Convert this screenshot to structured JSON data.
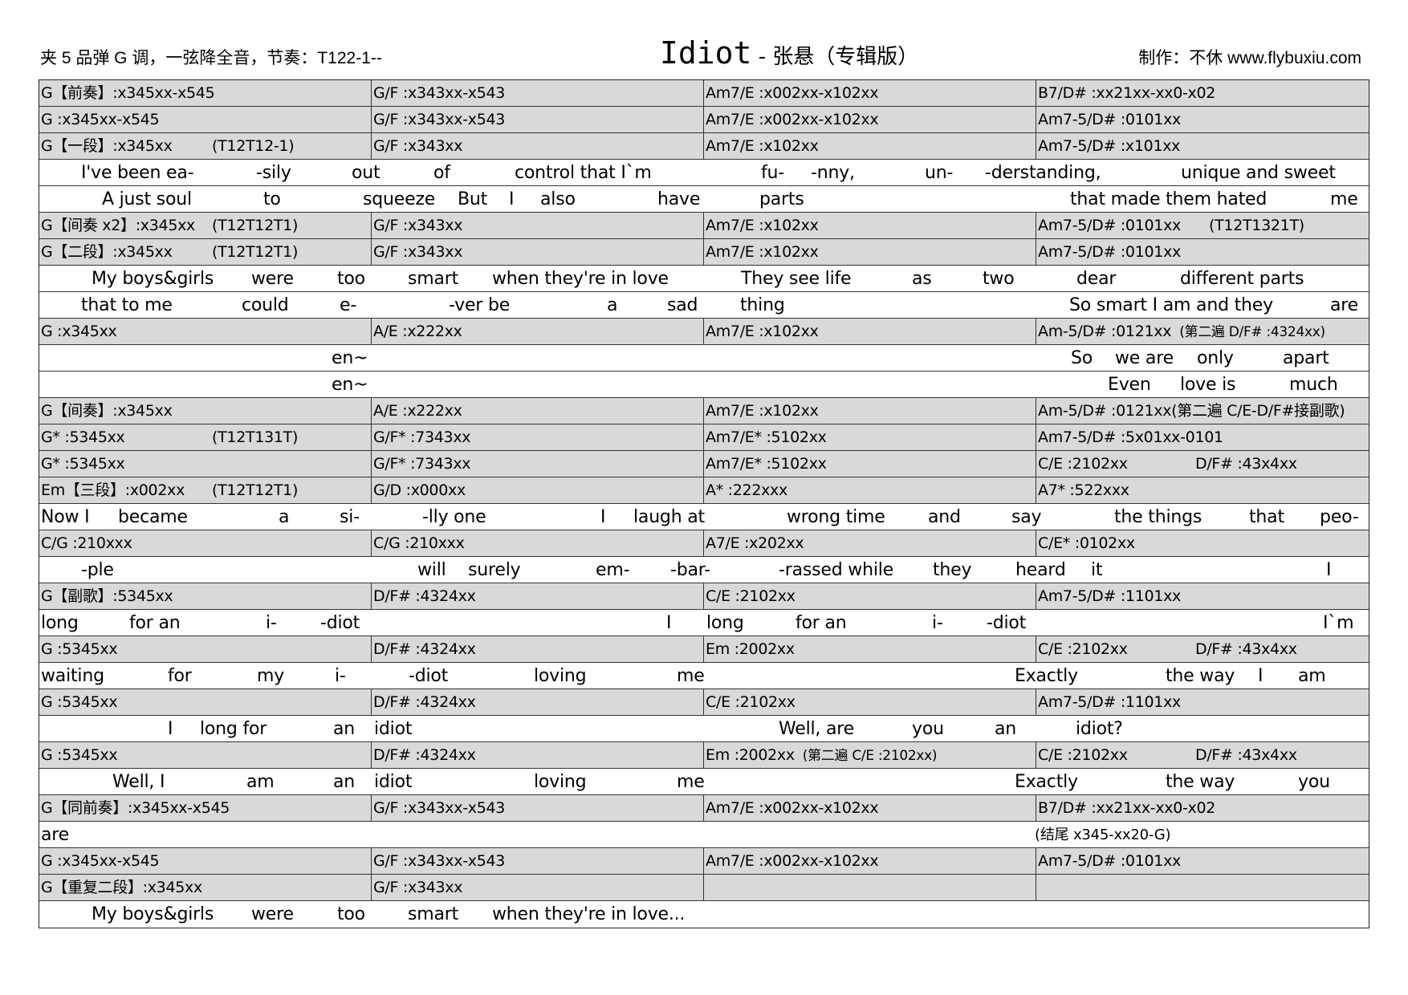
{
  "header": {
    "left": "夹 5 品弹 G 调，一弦降全音，节奏：T122-1--",
    "title_main": "Idiot",
    "title_rest": " - 张悬（专辑版）",
    "right": "制作：不休 www.flybuxiu.com"
  },
  "colors": {
    "chord_row_bg": "#d9d9d9",
    "lyric_row_bg": "#ffffff",
    "border": "#333333"
  },
  "rows": [
    {
      "type": "chord",
      "cells": [
        {
          "t": "G【前奏】:x345xx-x545"
        },
        {
          "t": "G/F :x343xx-x543"
        },
        {
          "t": "Am7/E :x002xx-x102xx"
        },
        {
          "t": "B7/D# :xx21xx-xx0-x02"
        }
      ]
    },
    {
      "type": "chord",
      "cells": [
        {
          "t": "G :x345xx-x545"
        },
        {
          "t": "G/F :x343xx-x543"
        },
        {
          "t": "Am7/E :x002xx-x102xx"
        },
        {
          "t": "Am7-5/D# :0101xx"
        }
      ]
    },
    {
      "type": "chord",
      "cells": [
        {
          "t": "G【一段】:x345xx",
          "x": "(T12T12-1)"
        },
        {
          "t": "G/F :x343xx"
        },
        {
          "t": "Am7/E :x102xx"
        },
        {
          "t": "Am7-5/D# :x101xx"
        }
      ]
    },
    {
      "type": "lyric",
      "words": [
        "I've been ea-",
        "-sily",
        "out",
        "of",
        "control that I`m",
        "fu-",
        "-nny,",
        "un-",
        "-derstanding,",
        "unique and sweet"
      ]
    },
    {
      "type": "lyric",
      "words": [
        "A just soul",
        "to",
        "squeeze",
        "But",
        "I",
        "also",
        "have",
        "parts",
        "that made them hated",
        "me"
      ]
    },
    {
      "type": "chord",
      "cells": [
        {
          "t": "G【间奏 x2】:x345xx",
          "x": "(T12T12T1)"
        },
        {
          "t": "G/F :x343xx"
        },
        {
          "t": "Am7/E :x102xx"
        },
        {
          "t": "Am7-5/D# :0101xx",
          "x": "(T12T1321T)"
        }
      ]
    },
    {
      "type": "chord",
      "cells": [
        {
          "t": "G【二段】:x345xx",
          "x": "(T12T12T1)"
        },
        {
          "t": "G/F :x343xx"
        },
        {
          "t": "Am7/E :x102xx"
        },
        {
          "t": "Am7-5/D# :0101xx"
        }
      ]
    },
    {
      "type": "lyric",
      "words": [
        "My boys&girls",
        "were",
        "too",
        "smart",
        "when they're in love",
        "They see life",
        "as",
        "two",
        "dear",
        "different parts"
      ]
    },
    {
      "type": "lyric",
      "words": [
        "that to me",
        "could",
        "e-",
        "-ver be",
        "a",
        "sad",
        "thing",
        "So smart I am and they",
        "are"
      ]
    },
    {
      "type": "chord",
      "cells": [
        {
          "t": "G :x345xx"
        },
        {
          "t": "A/E :x222xx"
        },
        {
          "t": "Am7/E :x102xx"
        },
        {
          "t": "Am-5/D# :0121xx",
          "s": "(第二遍 D/F# :4324xx)"
        }
      ]
    },
    {
      "type": "lyric",
      "words": [
        "en~",
        "So",
        "we are",
        "only",
        "apart"
      ]
    },
    {
      "type": "lyric",
      "words": [
        "en~",
        "Even",
        "love is",
        "much"
      ]
    },
    {
      "type": "chord",
      "cells": [
        {
          "t": "G【间奏】:x345xx"
        },
        {
          "t": "A/E :x222xx"
        },
        {
          "t": "Am7/E :x102xx"
        },
        {
          "t": "Am-5/D# :0121xx(第二遍 C/E-D/F#接副歌)"
        }
      ]
    },
    {
      "type": "chord",
      "cells": [
        {
          "t": "G* :5345xx",
          "x": "(T12T131T)"
        },
        {
          "t": "G/F* :7343xx"
        },
        {
          "t": "Am7/E* :5102xx"
        },
        {
          "t": "Am7-5/D# :5x01xx-0101"
        }
      ]
    },
    {
      "type": "chord",
      "cells": [
        {
          "t": "G* :5345xx"
        },
        {
          "t": "G/F* :7343xx"
        },
        {
          "t": "Am7/E* :5102xx"
        },
        {
          "t": "C/E :2102xx",
          "x": "D/F# :43x4xx"
        }
      ]
    },
    {
      "type": "chord",
      "cells": [
        {
          "t": "Em【三段】:x002xx",
          "x": "(T12T12T1)"
        },
        {
          "t": "G/D :x000xx"
        },
        {
          "t": "A* :222xxx"
        },
        {
          "t": "A7* :522xxx"
        }
      ]
    },
    {
      "type": "lyric",
      "words": [
        "Now I",
        "became",
        "a",
        "si-",
        "-lly one",
        "I",
        "laugh at",
        "wrong time",
        "and",
        "say",
        "the things",
        "that",
        "peo-"
      ]
    },
    {
      "type": "chord",
      "cells": [
        {
          "t": "C/G :210xxx"
        },
        {
          "t": "C/G :210xxx"
        },
        {
          "t": "A7/E :x202xx"
        },
        {
          "t": "C/E* :0102xx"
        }
      ]
    },
    {
      "type": "lyric",
      "words": [
        "-ple",
        "will",
        "surely",
        "em-",
        "-bar-",
        "-rassed while",
        "they",
        "heard",
        "it",
        "I"
      ]
    },
    {
      "type": "chord",
      "cells": [
        {
          "t": "G【副歌】:5345xx"
        },
        {
          "t": "D/F# :4324xx"
        },
        {
          "t": "C/E :2102xx"
        },
        {
          "t": "Am7-5/D# :1101xx"
        }
      ]
    },
    {
      "type": "lyric",
      "words": [
        "long",
        "for an",
        "i-",
        "-diot",
        "I",
        "long",
        "for an",
        "i-",
        "-diot",
        "I`m"
      ]
    },
    {
      "type": "chord",
      "cells": [
        {
          "t": "G :5345xx"
        },
        {
          "t": "D/F# :4324xx"
        },
        {
          "t": "Em :2002xx"
        },
        {
          "t": "C/E :2102xx",
          "x": "D/F# :43x4xx"
        }
      ]
    },
    {
      "type": "lyric",
      "words": [
        "waiting",
        "for",
        "my",
        "i-",
        "-diot",
        "loving",
        "me",
        "Exactly",
        "the way",
        "I",
        "am"
      ]
    },
    {
      "type": "chord",
      "cells": [
        {
          "t": "G :5345xx"
        },
        {
          "t": "D/F# :4324xx"
        },
        {
          "t": "C/E :2102xx"
        },
        {
          "t": "Am7-5/D# :1101xx"
        }
      ]
    },
    {
      "type": "lyric",
      "words": [
        "I",
        "long for",
        "an",
        "idiot",
        "Well, are",
        "you",
        "an",
        "idiot?"
      ]
    },
    {
      "type": "chord",
      "cells": [
        {
          "t": "G :5345xx"
        },
        {
          "t": "D/F# :4324xx"
        },
        {
          "t": "Em :2002xx",
          "s": "(第二遍 C/E :2102xx)"
        },
        {
          "t": "C/E :2102xx",
          "x": "D/F# :43x4xx"
        }
      ]
    },
    {
      "type": "lyric",
      "words": [
        "Well, I",
        "am",
        "an",
        "idiot",
        "loving",
        "me",
        "Exactly",
        "the way",
        "you"
      ]
    },
    {
      "type": "chord",
      "cells": [
        {
          "t": "G【同前奏】:x345xx-x545"
        },
        {
          "t": "G/F :x343xx-x543"
        },
        {
          "t": "Am7/E :x002xx-x102xx"
        },
        {
          "t": "B7/D# :xx21xx-xx0-x02"
        }
      ]
    },
    {
      "type": "lyric",
      "words": [
        "are",
        "(结尾 x345-xx20-G)"
      ]
    },
    {
      "type": "chord",
      "cells": [
        {
          "t": "G :x345xx-x545"
        },
        {
          "t": "G/F :x343xx-x543"
        },
        {
          "t": "Am7/E :x002xx-x102xx"
        },
        {
          "t": "Am7-5/D# :0101xx"
        }
      ]
    },
    {
      "type": "chord",
      "cells": [
        {
          "t": "G【重复二段】:x345xx"
        },
        {
          "t": "G/F :x343xx"
        },
        {
          "t": ""
        },
        {
          "t": ""
        }
      ]
    },
    {
      "type": "lyric",
      "words": [
        "My boys&girls",
        "were",
        "too",
        "smart",
        "when they're in love..."
      ]
    }
  ]
}
